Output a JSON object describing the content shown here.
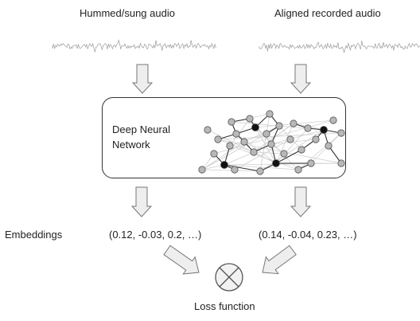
{
  "labels": {
    "left_input": "Hummed/sung audio",
    "right_input": "Aligned recorded audio",
    "network_line1": "Deep Neural",
    "network_line2": "Network",
    "embeddings": "Embeddings",
    "left_embedding": "(0.12, -0.03, 0.2, …)",
    "right_embedding": "(0.14, -0.04, 0.23, …)",
    "loss": "Loss function"
  },
  "icons": [
    "waveform-icon",
    "down-arrow-icon",
    "diagonal-arrow-icon",
    "neural-network-graph-icon",
    "circle-times-icon"
  ],
  "colors": {
    "arrow_fill": "#eeeeee",
    "arrow_stroke": "#777777",
    "node_fill": "#b8b8b8",
    "node_dark": "#111111",
    "wave": "#9a9a9a"
  }
}
